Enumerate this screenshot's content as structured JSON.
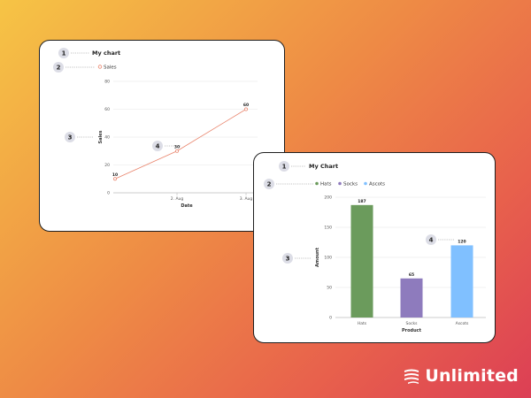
{
  "brand": {
    "name": "Unlimited"
  },
  "colors": {
    "line": "#e9846c",
    "hats": "#6b9b5c",
    "socks": "#8e7bbd",
    "ascots": "#80c0ff"
  },
  "charts": [
    {
      "badges": [
        "1",
        "2",
        "3",
        "4"
      ],
      "chart_data": {
        "type": "line",
        "title": "My chart",
        "xlabel": "Date",
        "ylabel": "Sales",
        "x_ticks": [
          "2. Aug",
          "3. Aug"
        ],
        "y_ticks": [
          "0",
          "20",
          "40",
          "60",
          "80"
        ],
        "ylim": [
          0,
          80
        ],
        "grid": true,
        "legend_position": "top-left",
        "series": [
          {
            "name": "Sales",
            "points": [
              {
                "x": 0,
                "y": 10,
                "label": "10"
              },
              {
                "x": 1,
                "y": 30,
                "label": "30"
              },
              {
                "x": 2,
                "y": 60,
                "label": "60"
              }
            ]
          }
        ]
      }
    },
    {
      "badges": [
        "1",
        "2",
        "3",
        "4"
      ],
      "chart_data": {
        "type": "bar",
        "title": "My Chart",
        "xlabel": "Product",
        "ylabel": "Amount",
        "categories": [
          "Hats",
          "Socks",
          "Ascots"
        ],
        "values": [
          187,
          65,
          120
        ],
        "value_labels": [
          "187",
          "65",
          "120"
        ],
        "y_ticks": [
          "0",
          "50",
          "100",
          "150",
          "200"
        ],
        "ylim": [
          0,
          200
        ],
        "grid": true,
        "legend_position": "top-left",
        "legend": [
          "Hats",
          "Socks",
          "Ascots"
        ]
      }
    }
  ]
}
